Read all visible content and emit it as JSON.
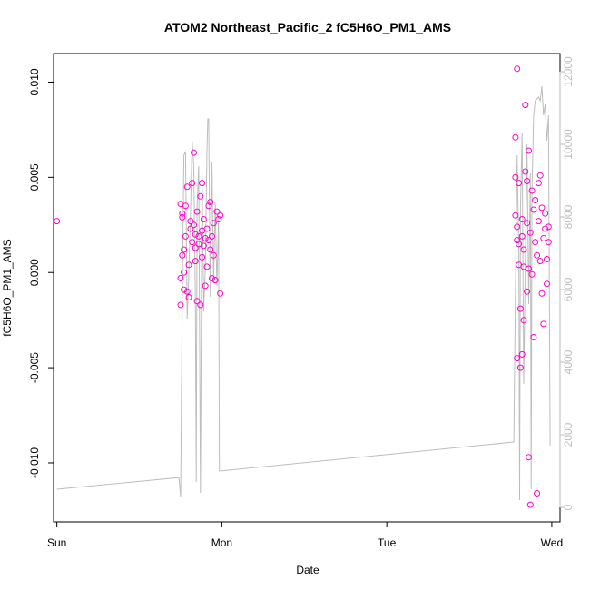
{
  "chart_data": {
    "type": "scatter",
    "title": "ATOM2 Northeast_Pacific_2 fC5H6O_PM1_AMS",
    "xlabel": "Date",
    "ylabel": "fC5H6O_PM1_AMS",
    "y2label": "",
    "grid": false,
    "legend": "none",
    "colors": {
      "points": "#ff00cc",
      "line": "#bdbdbd",
      "axis": "#000000",
      "axis2": "#bdbdbd"
    },
    "x_ticks": [
      {
        "label": "Sun",
        "value": 0
      },
      {
        "label": "Mon",
        "value": 1
      },
      {
        "label": "Tue",
        "value": 2
      },
      {
        "label": "Wed",
        "value": 3
      }
    ],
    "xlim": [
      -0.02,
      3.05
    ],
    "y_ticks": [
      {
        "label": "0.010",
        "value": 0.01
      },
      {
        "label": "0.005",
        "value": 0.005
      },
      {
        "label": "0.000",
        "value": 0.0
      },
      {
        "label": "-0.005",
        "value": -0.005
      },
      {
        "label": "-0.010",
        "value": -0.01
      }
    ],
    "ylim": [
      -0.0131,
      0.0115
    ],
    "y2_ticks": [
      {
        "label": "0",
        "value": 0
      },
      {
        "label": "2000",
        "value": 2000
      },
      {
        "label": "4000",
        "value": 4000
      },
      {
        "label": "6000",
        "value": 6000
      },
      {
        "label": "8000",
        "value": 8000
      },
      {
        "label": "10000",
        "value": 10000
      },
      {
        "label": "12000",
        "value": 12000
      }
    ],
    "y2lim": [
      -400,
      12500
    ],
    "series": [
      {
        "type": "scatter",
        "axis": "left",
        "points": [
          {
            "x": 0.0,
            "y": 0.0027
          },
          {
            "x": 0.75,
            "y": 0.0036
          },
          {
            "x": 0.76,
            "y": 0.0029
          },
          {
            "x": 0.76,
            "y": 0.0031
          },
          {
            "x": 0.76,
            "y": 0.0009
          },
          {
            "x": 0.77,
            "y": 0.0012
          },
          {
            "x": 0.77,
            "y": -0.0009
          },
          {
            "x": 0.75,
            "y": -0.0017
          },
          {
            "x": 0.75,
            "y": -0.0003
          },
          {
            "x": 0.77,
            "y": 0.0
          },
          {
            "x": 0.78,
            "y": 0.0035
          },
          {
            "x": 0.78,
            "y": 0.0019
          },
          {
            "x": 0.79,
            "y": 0.0045
          },
          {
            "x": 0.79,
            "y": -0.001
          },
          {
            "x": 0.8,
            "y": -0.0013
          },
          {
            "x": 0.8,
            "y": 0.0004
          },
          {
            "x": 0.81,
            "y": 0.0027
          },
          {
            "x": 0.81,
            "y": 0.0023
          },
          {
            "x": 0.82,
            "y": 0.0016
          },
          {
            "x": 0.82,
            "y": 0.0047
          },
          {
            "x": 0.83,
            "y": 0.0063
          },
          {
            "x": 0.83,
            "y": 0.0025
          },
          {
            "x": 0.84,
            "y": 0.002
          },
          {
            "x": 0.84,
            "y": 0.0013
          },
          {
            "x": 0.84,
            "y": 0.0006
          },
          {
            "x": 0.85,
            "y": -0.0015
          },
          {
            "x": 0.85,
            "y": 0.0032
          },
          {
            "x": 0.86,
            "y": 0.0019
          },
          {
            "x": 0.86,
            "y": 0.0015
          },
          {
            "x": 0.87,
            "y": 0.004
          },
          {
            "x": 0.87,
            "y": -0.0017
          },
          {
            "x": 0.88,
            "y": 0.0047
          },
          {
            "x": 0.88,
            "y": 0.0022
          },
          {
            "x": 0.88,
            "y": 0.0008
          },
          {
            "x": 0.89,
            "y": 0.0028
          },
          {
            "x": 0.89,
            "y": 0.0014
          },
          {
            "x": 0.9,
            "y": -0.0007
          },
          {
            "x": 0.9,
            "y": 0.0018
          },
          {
            "x": 0.91,
            "y": 0.0023
          },
          {
            "x": 0.91,
            "y": 0.0003
          },
          {
            "x": 0.92,
            "y": 0.0035
          },
          {
            "x": 0.92,
            "y": 0.0017
          },
          {
            "x": 0.93,
            "y": 0.0037
          },
          {
            "x": 0.93,
            "y": 0.0012
          },
          {
            "x": 0.94,
            "y": -0.0003
          },
          {
            "x": 0.94,
            "y": 0.0019
          },
          {
            "x": 0.95,
            "y": 0.0026
          },
          {
            "x": 0.95,
            "y": 0.0009
          },
          {
            "x": 0.96,
            "y": -0.0004
          },
          {
            "x": 0.97,
            "y": 0.0032
          },
          {
            "x": 0.98,
            "y": 0.0028
          },
          {
            "x": 0.99,
            "y": 0.003
          },
          {
            "x": 0.99,
            "y": -0.0011
          },
          {
            "x": 2.78,
            "y": 0.0071
          },
          {
            "x": 2.78,
            "y": 0.005
          },
          {
            "x": 2.79,
            "y": 0.0107
          },
          {
            "x": 2.78,
            "y": 0.003
          },
          {
            "x": 2.79,
            "y": 0.0024
          },
          {
            "x": 2.79,
            "y": 0.0017
          },
          {
            "x": 2.8,
            "y": 0.0047
          },
          {
            "x": 2.8,
            "y": 0.0004
          },
          {
            "x": 2.81,
            "y": -0.0019
          },
          {
            "x": 2.81,
            "y": -0.005
          },
          {
            "x": 2.79,
            "y": -0.0045
          },
          {
            "x": 2.82,
            "y": -0.0043
          },
          {
            "x": 2.82,
            "y": 0.0028
          },
          {
            "x": 2.83,
            "y": 0.0012
          },
          {
            "x": 2.83,
            "y": -0.0025
          },
          {
            "x": 2.84,
            "y": 0.0053
          },
          {
            "x": 2.84,
            "y": 0.0088
          },
          {
            "x": 2.85,
            "y": 0.0048
          },
          {
            "x": 2.85,
            "y": 0.0026
          },
          {
            "x": 2.86,
            "y": 0.0064
          },
          {
            "x": 2.86,
            "y": -0.0097
          },
          {
            "x": 2.87,
            "y": -0.0122
          },
          {
            "x": 2.87,
            "y": 0.0021
          },
          {
            "x": 2.88,
            "y": -0.0001
          },
          {
            "x": 2.88,
            "y": 0.0043
          },
          {
            "x": 2.89,
            "y": 0.0033
          },
          {
            "x": 2.89,
            "y": -0.0034
          },
          {
            "x": 2.9,
            "y": 0.0038
          },
          {
            "x": 2.9,
            "y": 0.0016
          },
          {
            "x": 2.91,
            "y": -0.0116
          },
          {
            "x": 2.91,
            "y": 0.0009
          },
          {
            "x": 2.92,
            "y": 0.0047
          },
          {
            "x": 2.92,
            "y": 0.0027
          },
          {
            "x": 2.93,
            "y": 0.0051
          },
          {
            "x": 2.93,
            "y": 0.0006
          },
          {
            "x": 2.94,
            "y": 0.0034
          },
          {
            "x": 2.94,
            "y": -0.0011
          },
          {
            "x": 2.95,
            "y": 0.0018
          },
          {
            "x": 2.95,
            "y": -0.0027
          },
          {
            "x": 2.96,
            "y": 0.0031
          },
          {
            "x": 2.96,
            "y": 0.0023
          },
          {
            "x": 2.97,
            "y": -0.0006
          },
          {
            "x": 2.97,
            "y": 0.0007
          },
          {
            "x": 2.98,
            "y": 0.0016
          },
          {
            "x": 2.98,
            "y": 0.0024
          },
          {
            "x": 2.85,
            "y": -0.001
          },
          {
            "x": 2.86,
            "y": 0.0002
          },
          {
            "x": 2.8,
            "y": 0.0015
          },
          {
            "x": 2.82,
            "y": 0.0019
          },
          {
            "x": 2.83,
            "y": 0.0003
          }
        ]
      },
      {
        "type": "line",
        "axis": "right",
        "points": [
          {
            "x": 0.0,
            "y": 500
          },
          {
            "x": 0.74,
            "y": 820
          },
          {
            "x": 0.75,
            "y": 300
          },
          {
            "x": 0.76,
            "y": 5800
          },
          {
            "x": 0.77,
            "y": 9700
          },
          {
            "x": 0.78,
            "y": 9800
          },
          {
            "x": 0.79,
            "y": 5200
          },
          {
            "x": 0.8,
            "y": 6400
          },
          {
            "x": 0.81,
            "y": 8100
          },
          {
            "x": 0.82,
            "y": 10100
          },
          {
            "x": 0.83,
            "y": 9400
          },
          {
            "x": 0.84,
            "y": 5500
          },
          {
            "x": 0.845,
            "y": 700
          },
          {
            "x": 0.85,
            "y": 8300
          },
          {
            "x": 0.86,
            "y": 9400
          },
          {
            "x": 0.87,
            "y": 400
          },
          {
            "x": 0.88,
            "y": 9200
          },
          {
            "x": 0.89,
            "y": 5400
          },
          {
            "x": 0.9,
            "y": 6600
          },
          {
            "x": 0.91,
            "y": 9800
          },
          {
            "x": 0.915,
            "y": 10700
          },
          {
            "x": 0.92,
            "y": 10700
          },
          {
            "x": 0.93,
            "y": 5800
          },
          {
            "x": 0.94,
            "y": 9500
          },
          {
            "x": 0.95,
            "y": 6200
          },
          {
            "x": 0.96,
            "y": 8400
          },
          {
            "x": 0.97,
            "y": 6100
          },
          {
            "x": 0.98,
            "y": 8000
          },
          {
            "x": 0.985,
            "y": 1000
          },
          {
            "x": 2.77,
            "y": 1800
          },
          {
            "x": 2.78,
            "y": 6000
          },
          {
            "x": 2.79,
            "y": 9700
          },
          {
            "x": 2.8,
            "y": 7000
          },
          {
            "x": 2.805,
            "y": 200
          },
          {
            "x": 2.81,
            "y": 8200
          },
          {
            "x": 2.82,
            "y": 10300
          },
          {
            "x": 2.83,
            "y": 3400
          },
          {
            "x": 2.84,
            "y": 6800
          },
          {
            "x": 2.85,
            "y": 10000
          },
          {
            "x": 2.86,
            "y": 5600
          },
          {
            "x": 2.87,
            "y": 9200
          },
          {
            "x": 2.875,
            "y": 500
          },
          {
            "x": 2.88,
            "y": 8700
          },
          {
            "x": 2.89,
            "y": 10800
          },
          {
            "x": 2.9,
            "y": 11200
          },
          {
            "x": 2.92,
            "y": 11300
          },
          {
            "x": 2.93,
            "y": 11200
          },
          {
            "x": 2.94,
            "y": 11600
          },
          {
            "x": 2.95,
            "y": 10800
          },
          {
            "x": 2.96,
            "y": 11100
          },
          {
            "x": 2.97,
            "y": 10100
          },
          {
            "x": 2.98,
            "y": 10800
          },
          {
            "x": 2.99,
            "y": 1700
          }
        ]
      }
    ]
  }
}
